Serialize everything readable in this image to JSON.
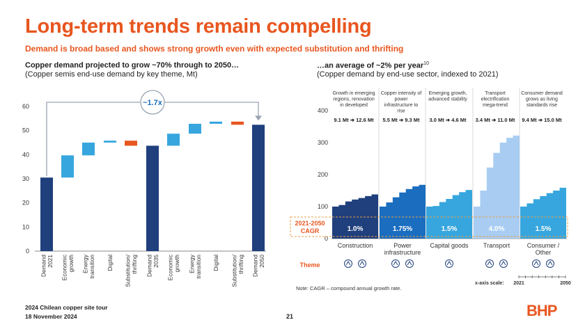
{
  "title": "Long-term trends remain compelling",
  "subtitle": "Demand is broad based and shows strong growth even with expected substitution and thrifting",
  "left_panel": {
    "heading": "Copper demand projected to grow ~70% through to 2050…",
    "subheading": "(Copper semis end-use demand by key theme, Mt)",
    "multiplier_label": "~1.7x"
  },
  "right_panel": {
    "heading": "…an average of ~2% per year",
    "heading_sup": "10",
    "subheading": "(Copper demand by end-use sector, indexed to 2021)",
    "cagr_label_line1": "2021-2050",
    "cagr_label_line2": "CAGR",
    "theme_label": "Theme",
    "note": "Note: CAGR – compound annual growth rate.",
    "xscale_label": "x-axis scale:",
    "xscale_start": "2021",
    "xscale_end": "2050"
  },
  "footer": {
    "line1": "2024 Chilean copper site tour",
    "line2": "18 November 2024",
    "page": "21",
    "logo": "BHP"
  },
  "colors": {
    "accent": "#e8561f",
    "navy": "#1f3f7d",
    "blue": "#1a6dbf",
    "light_blue": "#37a6de",
    "pale_blue": "#a9cdf2",
    "sky": "#65b7e6",
    "orange": "#e8561f"
  },
  "chart_data": [
    {
      "type": "bar",
      "subtype": "waterfall",
      "title": "Copper demand projected to grow ~70% through to 2050…",
      "ylabel": "Mt",
      "ylim": [
        0,
        60
      ],
      "yticks": [
        0,
        10,
        20,
        30,
        40,
        50,
        60
      ],
      "categories": [
        "Demand 2021",
        "Economic growth",
        "Energy transition",
        "Digital",
        "Substitution/ thrifting",
        "Demand 2035",
        "Economic growth",
        "Energy transition",
        "Digital",
        "Substitution/ thrifting",
        "Demand 2050"
      ],
      "bars": [
        {
          "kind": "total",
          "base": 0,
          "value": 30.5
        },
        {
          "kind": "increase",
          "base": 30.5,
          "value": 9.2
        },
        {
          "kind": "increase",
          "base": 39.7,
          "value": 5.3
        },
        {
          "kind": "increase",
          "base": 45.0,
          "value": 0.8
        },
        {
          "kind": "decrease",
          "base": 45.8,
          "value": -2.1
        },
        {
          "kind": "total",
          "base": 0,
          "value": 43.7
        },
        {
          "kind": "increase",
          "base": 43.7,
          "value": 5.0
        },
        {
          "kind": "increase",
          "base": 48.7,
          "value": 4.1
        },
        {
          "kind": "increase",
          "base": 52.8,
          "value": 0.9
        },
        {
          "kind": "decrease",
          "base": 53.7,
          "value": -1.3
        },
        {
          "kind": "total",
          "base": 0,
          "value": 52.4
        }
      ],
      "annotation": "~1.7x"
    },
    {
      "type": "area",
      "subtype": "small-multiples step",
      "title": "…an average of ~2% per year",
      "ylabel": "Index (2021 = 100)",
      "ylim": [
        0,
        400
      ],
      "yticks": [
        0,
        100,
        200,
        300,
        400
      ],
      "x_start": 2021,
      "x_end": 2050,
      "panels": [
        {
          "sector": "Construction",
          "theme": "Growth in emerging regions, renovation in developed",
          "from": "9.1 Mt",
          "to": "12.6 Mt",
          "cagr": "1.0%",
          "values": [
            100,
            105,
            116,
            122,
            127,
            133,
            138
          ]
        },
        {
          "sector": "Power infrastructure",
          "theme": "Copper intensity of power infrastructure to rise",
          "from": "5.5 Mt",
          "to": "9.3 Mt",
          "cagr": "1.75%",
          "values": [
            100,
            113,
            129,
            144,
            155,
            163,
            168
          ]
        },
        {
          "sector": "Capital goods",
          "theme": "Emerging growth, advanced stability",
          "from": "3.0 Mt",
          "to": "4.6 Mt",
          "cagr": "1.5%",
          "values": [
            100,
            102,
            114,
            124,
            136,
            145,
            152
          ]
        },
        {
          "sector": "Transport",
          "theme": "Transport electrification mega-trend",
          "from": "3.4 Mt",
          "to": "11.0 Mt",
          "cagr": "4.0%",
          "values": [
            100,
            150,
            222,
            268,
            300,
            315,
            322
          ]
        },
        {
          "sector": "Consumer / Other",
          "theme": "Consumer demand grows as living standards rise",
          "from": "9.4 Mt",
          "to": "15.0 Mt",
          "cagr": "1.5%",
          "values": [
            100,
            110,
            123,
            133,
            142,
            150,
            159
          ]
        }
      ]
    }
  ]
}
